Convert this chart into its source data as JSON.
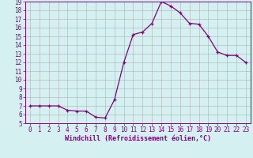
{
  "hours": [
    0,
    1,
    2,
    3,
    4,
    5,
    6,
    7,
    8,
    9,
    10,
    11,
    12,
    13,
    14,
    15,
    16,
    17,
    18,
    19,
    20,
    21,
    22,
    23
  ],
  "wc": [
    7.0,
    7.0,
    7.0,
    7.0,
    6.5,
    6.4,
    6.4,
    5.7,
    5.6,
    7.7,
    12.0,
    15.2,
    15.5,
    16.5,
    19.0,
    18.5,
    17.7,
    16.5,
    16.4,
    15.0,
    13.2,
    12.8,
    12.8,
    12.0
  ],
  "line_color": "#800080",
  "bg_color": "#d4f0f0",
  "grid_color": "#b0b0b0",
  "xlabel": "Windchill (Refroidissement éolien,°C)",
  "ylim": [
    5,
    19
  ],
  "xlim_min": -0.5,
  "xlim_max": 23.5,
  "yticks": [
    5,
    6,
    7,
    8,
    9,
    10,
    11,
    12,
    13,
    14,
    15,
    16,
    17,
    18,
    19
  ],
  "xticks": [
    0,
    1,
    2,
    3,
    4,
    5,
    6,
    7,
    8,
    9,
    10,
    11,
    12,
    13,
    14,
    15,
    16,
    17,
    18,
    19,
    20,
    21,
    22,
    23
  ],
  "tick_fontsize": 5.5,
  "xlabel_fontsize": 6.0
}
